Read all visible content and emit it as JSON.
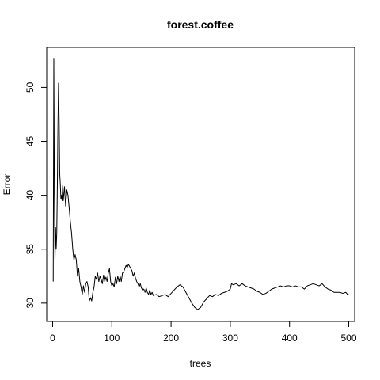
{
  "chart_data": {
    "type": "line",
    "title": "forest.coffee",
    "xlabel": "trees",
    "ylabel": "Error",
    "xlim": [
      -10,
      510
    ],
    "ylim": [
      28.3,
      53.7
    ],
    "xticks": [
      0,
      100,
      200,
      300,
      400,
      500
    ],
    "yticks": [
      30,
      35,
      40,
      45,
      50
    ],
    "grid": false,
    "legend": "none",
    "series": [
      {
        "color": "#000000",
        "points": [
          [
            1,
            32.0
          ],
          [
            2,
            52.7
          ],
          [
            3,
            40.0
          ],
          [
            4,
            34.0
          ],
          [
            5,
            37.0
          ],
          [
            6,
            35.0
          ],
          [
            7,
            36.5
          ],
          [
            8,
            41.0
          ],
          [
            9,
            46.5
          ],
          [
            10,
            50.4
          ],
          [
            11,
            47.0
          ],
          [
            12,
            42.0
          ],
          [
            13,
            41.0
          ],
          [
            14,
            39.7
          ],
          [
            15,
            40.0
          ],
          [
            16,
            39.5
          ],
          [
            17,
            40.9
          ],
          [
            18,
            39.5
          ],
          [
            20,
            40.8
          ],
          [
            22,
            39.0
          ],
          [
            24,
            40.5
          ],
          [
            26,
            40.0
          ],
          [
            28,
            38.8
          ],
          [
            30,
            37.5
          ],
          [
            32,
            36.5
          ],
          [
            34,
            35.0
          ],
          [
            36,
            34.0
          ],
          [
            38,
            34.5
          ],
          [
            40,
            34.0
          ],
          [
            42,
            32.5
          ],
          [
            44,
            33.2
          ],
          [
            46,
            32.0
          ],
          [
            48,
            31.5
          ],
          [
            50,
            30.8
          ],
          [
            52,
            31.6
          ],
          [
            54,
            31.0
          ],
          [
            56,
            31.8
          ],
          [
            58,
            32.0
          ],
          [
            60,
            31.5
          ],
          [
            62,
            30.2
          ],
          [
            64,
            30.5
          ],
          [
            66,
            30.2
          ],
          [
            68,
            31.0
          ],
          [
            70,
            31.5
          ],
          [
            72,
            32.5
          ],
          [
            74,
            32.2
          ],
          [
            76,
            32.8
          ],
          [
            78,
            32.0
          ],
          [
            80,
            32.5
          ],
          [
            82,
            32.2
          ],
          [
            84,
            31.8
          ],
          [
            86,
            32.6
          ],
          [
            88,
            32.0
          ],
          [
            90,
            32.4
          ],
          [
            92,
            32.0
          ],
          [
            94,
            32.8
          ],
          [
            96,
            33.2
          ],
          [
            98,
            32.0
          ],
          [
            100,
            31.6
          ],
          [
            102,
            31.8
          ],
          [
            104,
            31.5
          ],
          [
            106,
            32.4
          ],
          [
            108,
            31.8
          ],
          [
            110,
            32.5
          ],
          [
            112,
            32.0
          ],
          [
            114,
            32.5
          ],
          [
            116,
            32.0
          ],
          [
            118,
            32.8
          ],
          [
            120,
            32.9
          ],
          [
            122,
            33.2
          ],
          [
            124,
            33.5
          ],
          [
            126,
            33.3
          ],
          [
            128,
            33.6
          ],
          [
            130,
            33.4
          ],
          [
            132,
            33.2
          ],
          [
            134,
            33.0
          ],
          [
            136,
            32.5
          ],
          [
            138,
            32.8
          ],
          [
            140,
            32.3
          ],
          [
            142,
            32.0
          ],
          [
            144,
            31.8
          ],
          [
            146,
            31.5
          ],
          [
            148,
            31.8
          ],
          [
            150,
            31.4
          ],
          [
            152,
            31.2
          ],
          [
            154,
            31.3
          ],
          [
            156,
            31.0
          ],
          [
            158,
            31.4
          ],
          [
            160,
            31.0
          ],
          [
            162,
            30.8
          ],
          [
            164,
            31.2
          ],
          [
            166,
            30.8
          ],
          [
            168,
            31.0
          ],
          [
            170,
            30.7
          ],
          [
            175,
            30.8
          ],
          [
            180,
            30.6
          ],
          [
            185,
            30.7
          ],
          [
            190,
            30.8
          ],
          [
            195,
            30.6
          ],
          [
            200,
            30.9
          ],
          [
            205,
            31.2
          ],
          [
            210,
            31.5
          ],
          [
            215,
            31.7
          ],
          [
            220,
            31.5
          ],
          [
            225,
            31.0
          ],
          [
            230,
            30.5
          ],
          [
            235,
            30.0
          ],
          [
            240,
            29.6
          ],
          [
            245,
            29.4
          ],
          [
            250,
            29.6
          ],
          [
            255,
            30.1
          ],
          [
            260,
            30.4
          ],
          [
            265,
            30.7
          ],
          [
            270,
            30.6
          ],
          [
            275,
            30.8
          ],
          [
            280,
            30.7
          ],
          [
            285,
            30.9
          ],
          [
            290,
            31.0
          ],
          [
            295,
            31.1
          ],
          [
            300,
            31.3
          ],
          [
            302,
            31.8
          ],
          [
            305,
            31.7
          ],
          [
            310,
            31.8
          ],
          [
            315,
            31.6
          ],
          [
            320,
            31.8
          ],
          [
            325,
            31.6
          ],
          [
            330,
            31.5
          ],
          [
            335,
            31.4
          ],
          [
            340,
            31.3
          ],
          [
            345,
            31.1
          ],
          [
            350,
            31.0
          ],
          [
            355,
            30.8
          ],
          [
            360,
            30.9
          ],
          [
            365,
            31.1
          ],
          [
            370,
            31.3
          ],
          [
            375,
            31.4
          ],
          [
            380,
            31.5
          ],
          [
            385,
            31.6
          ],
          [
            390,
            31.5
          ],
          [
            395,
            31.6
          ],
          [
            400,
            31.6
          ],
          [
            405,
            31.5
          ],
          [
            410,
            31.6
          ],
          [
            415,
            31.5
          ],
          [
            420,
            31.5
          ],
          [
            425,
            31.3
          ],
          [
            430,
            31.6
          ],
          [
            435,
            31.7
          ],
          [
            440,
            31.8
          ],
          [
            445,
            31.7
          ],
          [
            450,
            31.6
          ],
          [
            455,
            31.8
          ],
          [
            460,
            31.5
          ],
          [
            465,
            31.3
          ],
          [
            470,
            31.2
          ],
          [
            475,
            31.0
          ],
          [
            480,
            31.0
          ],
          [
            485,
            31.0
          ],
          [
            490,
            30.9
          ],
          [
            495,
            31.0
          ],
          [
            498,
            30.8
          ],
          [
            500,
            30.8
          ]
        ]
      }
    ]
  }
}
